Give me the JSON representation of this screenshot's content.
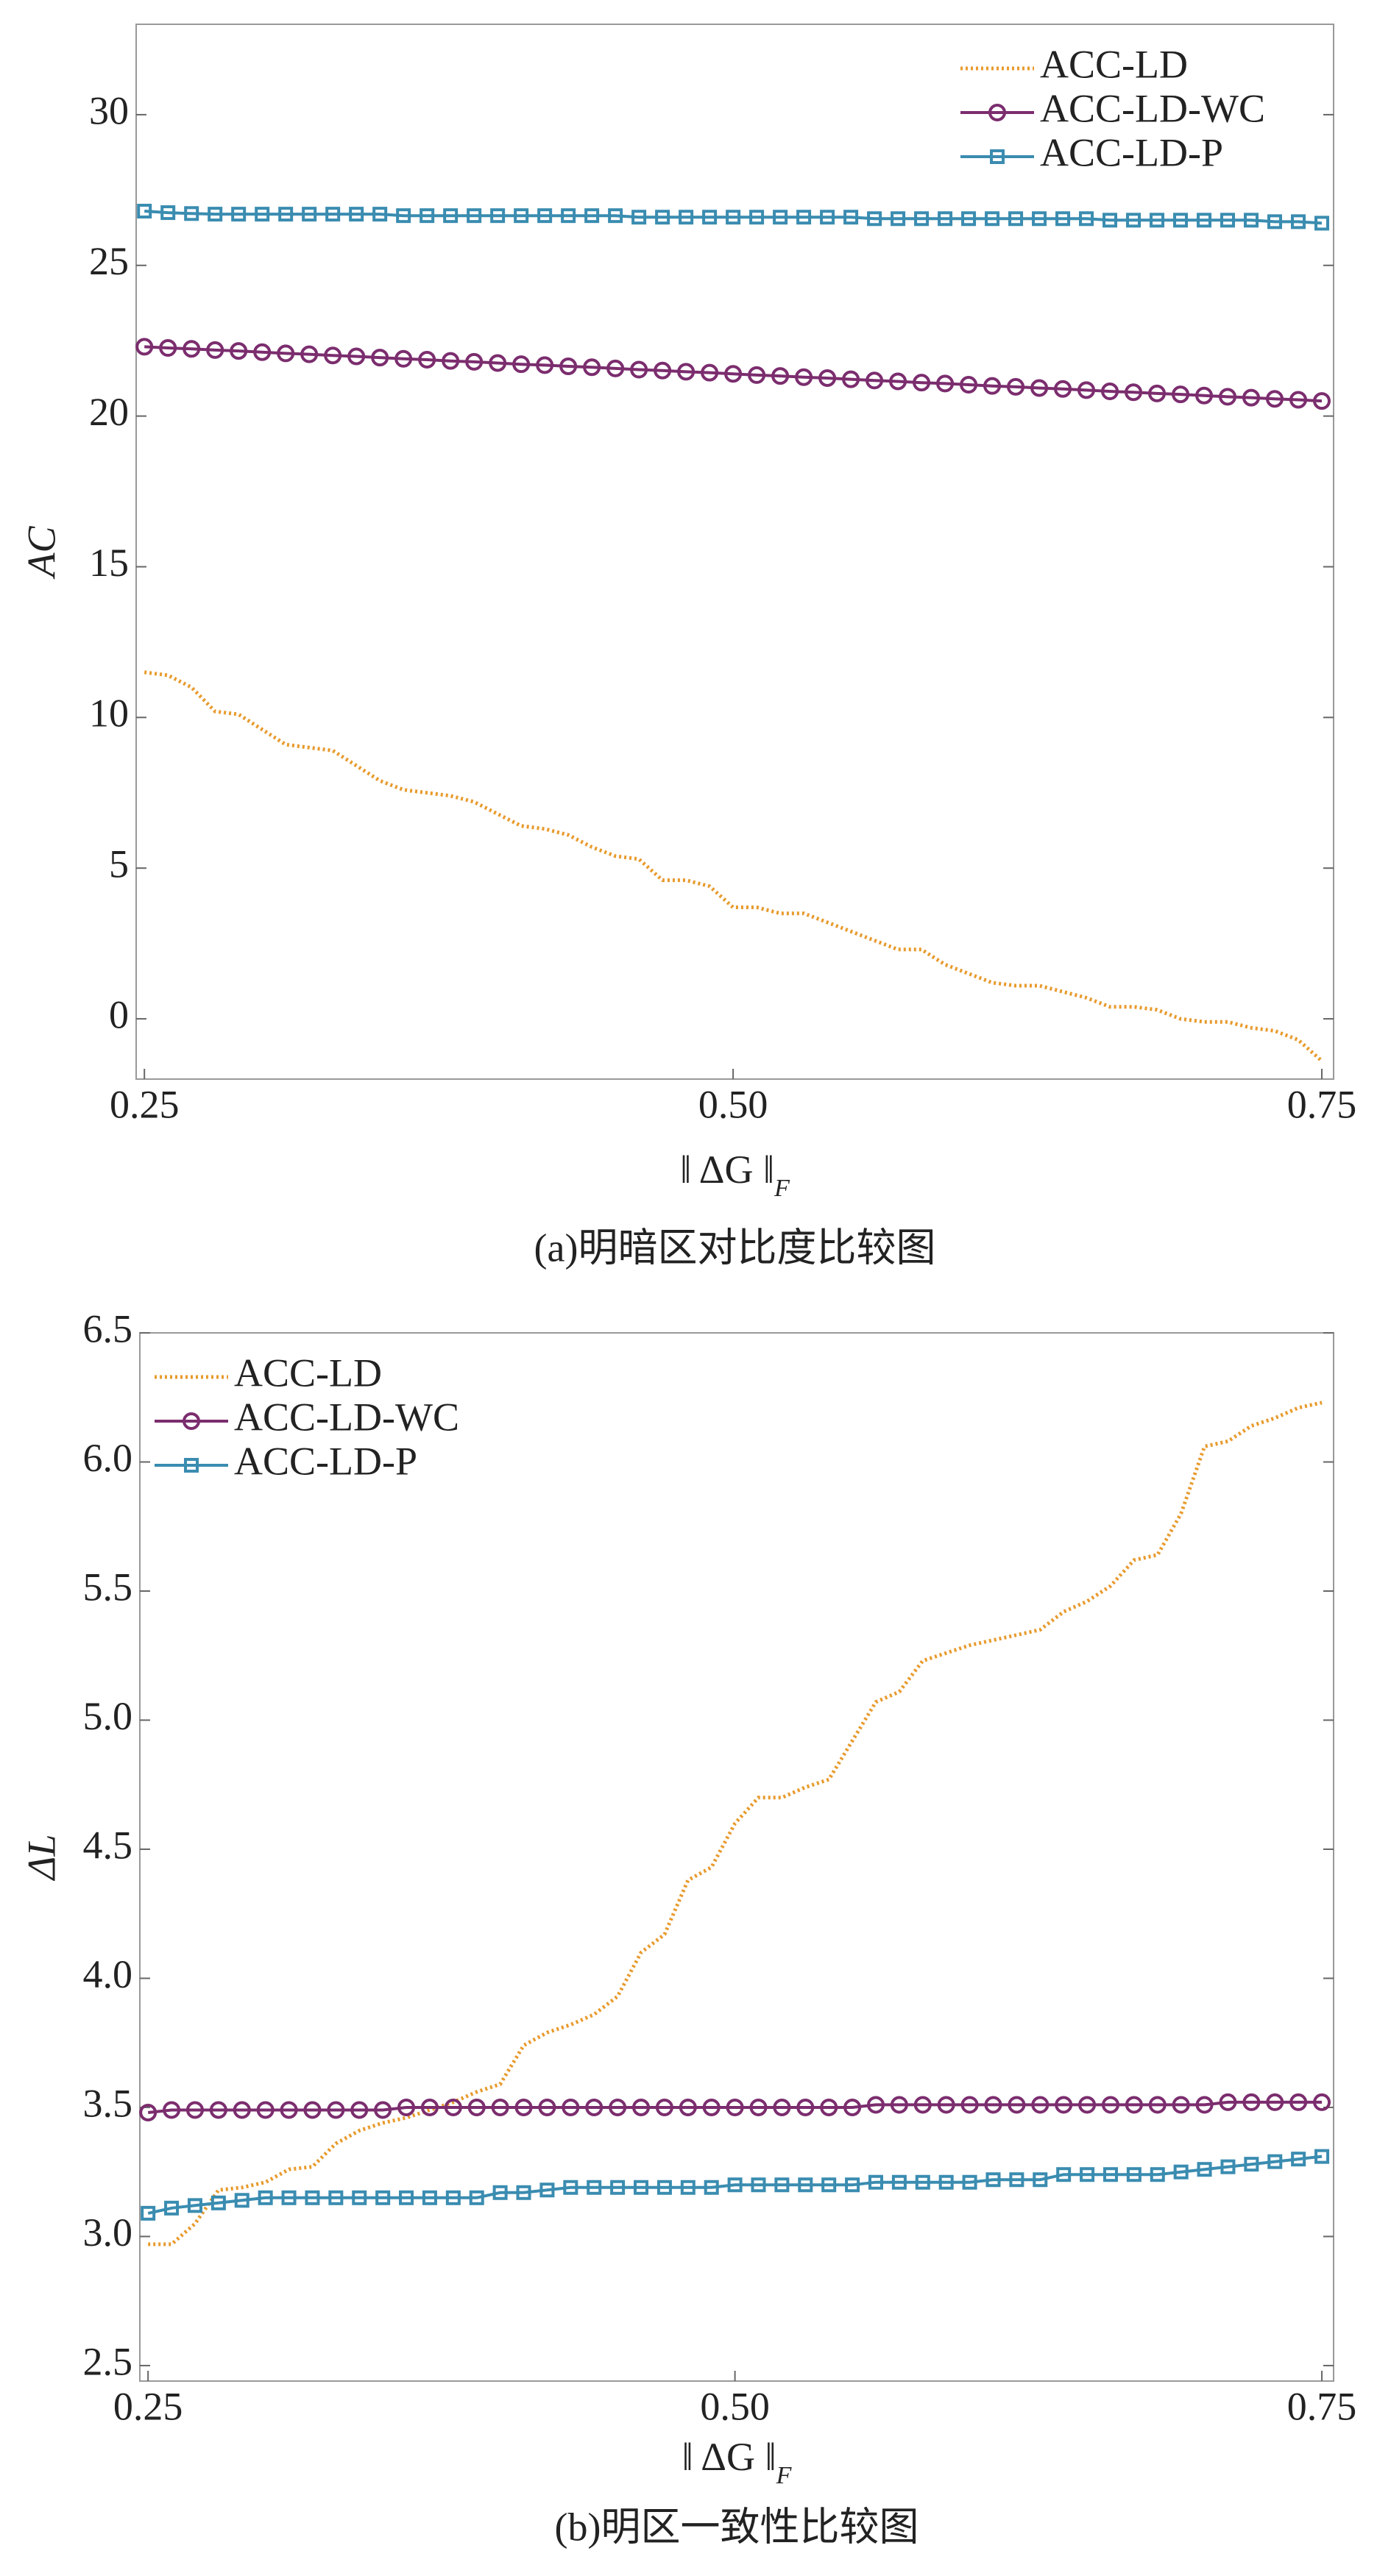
{
  "chart_data": [
    {
      "type": "line",
      "y_label": "AC",
      "x_label": {
        "text": "‖ ΔG ‖",
        "sub": "F"
      },
      "caption": "(a)明暗区对比度比较图",
      "legend": "upper right",
      "xlim": [
        0.2465,
        0.755
      ],
      "ylim": [
        -2,
        33
      ],
      "xticks": [
        0.25,
        {
          "value": 0.5,
          "label": "0.50"
        },
        0.75
      ],
      "yticks": [
        0,
        5,
        10,
        15,
        20,
        25,
        30
      ],
      "x": [
        0.25,
        0.26,
        0.27,
        0.28,
        0.29,
        0.3,
        0.31,
        0.32,
        0.33,
        0.34,
        0.35,
        0.36,
        0.37,
        0.38,
        0.39,
        0.4,
        0.41,
        0.42,
        0.43,
        0.44,
        0.45,
        0.46,
        0.47,
        0.48,
        0.49,
        0.5,
        0.51,
        0.52,
        0.53,
        0.54,
        0.55,
        0.56,
        0.57,
        0.58,
        0.59,
        0.6,
        0.61,
        0.62,
        0.63,
        0.64,
        0.65,
        0.66,
        0.67,
        0.68,
        0.69,
        0.7,
        0.71,
        0.72,
        0.73,
        0.74,
        0.75
      ],
      "series": [
        {
          "name": "ACC-LD",
          "color": "#e89a2c",
          "marker": "none",
          "values": [
            11.5,
            11.4,
            11.0,
            10.2,
            10.1,
            9.6,
            9.1,
            9.0,
            8.9,
            8.4,
            7.9,
            7.6,
            7.5,
            7.4,
            7.2,
            6.8,
            6.4,
            6.3,
            6.1,
            5.7,
            5.4,
            5.3,
            4.6,
            4.6,
            4.4,
            3.7,
            3.7,
            3.5,
            3.5,
            3.2,
            2.9,
            2.6,
            2.3,
            2.3,
            1.8,
            1.5,
            1.2,
            1.1,
            1.1,
            0.9,
            0.7,
            0.4,
            0.4,
            0.3,
            0.0,
            -0.1,
            -0.1,
            -0.3,
            -0.4,
            -0.7,
            -1.4
          ]
        },
        {
          "name": "ACC-LD-WC",
          "color": "#7b2d6e",
          "marker": "circle",
          "values": [
            22.3,
            22.26,
            22.23,
            22.19,
            22.16,
            22.12,
            22.08,
            22.05,
            22.01,
            21.98,
            21.94,
            21.9,
            21.87,
            21.83,
            21.8,
            21.76,
            21.72,
            21.69,
            21.65,
            21.62,
            21.58,
            21.54,
            21.51,
            21.47,
            21.44,
            21.4,
            21.36,
            21.33,
            21.29,
            21.26,
            21.22,
            21.18,
            21.15,
            21.11,
            21.08,
            21.04,
            21.0,
            20.97,
            20.93,
            20.9,
            20.86,
            20.82,
            20.79,
            20.75,
            20.72,
            20.68,
            20.64,
            20.61,
            20.57,
            20.54,
            20.5
          ]
        },
        {
          "name": "ACC-LD-P",
          "color": "#3a8cb0",
          "marker": "square",
          "values": [
            26.8,
            26.75,
            26.72,
            26.7,
            26.7,
            26.7,
            26.7,
            26.7,
            26.7,
            26.7,
            26.7,
            26.65,
            26.65,
            26.65,
            26.65,
            26.65,
            26.65,
            26.65,
            26.65,
            26.65,
            26.65,
            26.6,
            26.6,
            26.6,
            26.6,
            26.6,
            26.6,
            26.6,
            26.6,
            26.6,
            26.6,
            26.55,
            26.55,
            26.55,
            26.55,
            26.55,
            26.55,
            26.55,
            26.55,
            26.55,
            26.55,
            26.5,
            26.5,
            26.5,
            26.5,
            26.5,
            26.5,
            26.5,
            26.45,
            26.45,
            26.4
          ]
        }
      ]
    },
    {
      "type": "line",
      "y_label": "ΔL",
      "x_label": {
        "text": "‖ ΔG ‖",
        "sub": "F"
      },
      "caption": "(b)明区一致性比较图",
      "legend": "upper left",
      "xlim": [
        0.2465,
        0.755
      ],
      "ylim": [
        2.44,
        6.5
      ],
      "xticks": [
        0.25,
        {
          "value": 0.5,
          "label": "0.50"
        },
        0.75
      ],
      "yticks": [
        2.5,
        {
          "value": 3,
          "label": "3.0"
        },
        3.5,
        {
          "value": 4,
          "label": "4.0"
        },
        4.5,
        {
          "value": 5,
          "label": "5.0"
        },
        5.5,
        {
          "value": 6,
          "label": "6.0"
        },
        6.5
      ],
      "x": [
        0.25,
        0.26,
        0.27,
        0.28,
        0.29,
        0.3,
        0.31,
        0.32,
        0.33,
        0.34,
        0.35,
        0.36,
        0.37,
        0.38,
        0.39,
        0.4,
        0.41,
        0.42,
        0.43,
        0.44,
        0.45,
        0.46,
        0.47,
        0.48,
        0.49,
        0.5,
        0.51,
        0.52,
        0.53,
        0.54,
        0.55,
        0.56,
        0.57,
        0.58,
        0.59,
        0.6,
        0.61,
        0.62,
        0.63,
        0.64,
        0.65,
        0.66,
        0.67,
        0.68,
        0.69,
        0.7,
        0.71,
        0.72,
        0.73,
        0.74,
        0.75
      ],
      "series": [
        {
          "name": "ACC-LD",
          "color": "#e89a2c",
          "marker": "none",
          "values": [
            2.97,
            2.97,
            3.05,
            3.18,
            3.19,
            3.21,
            3.26,
            3.27,
            3.36,
            3.41,
            3.44,
            3.46,
            3.49,
            3.52,
            3.56,
            3.59,
            3.74,
            3.79,
            3.82,
            3.86,
            3.93,
            4.1,
            4.17,
            4.38,
            4.43,
            4.6,
            4.7,
            4.7,
            4.74,
            4.77,
            4.92,
            5.07,
            5.11,
            5.23,
            5.26,
            5.29,
            5.31,
            5.33,
            5.35,
            5.42,
            5.46,
            5.52,
            5.62,
            5.64,
            5.8,
            6.06,
            6.08,
            6.14,
            6.17,
            6.21,
            6.23
          ]
        },
        {
          "name": "ACC-LD-WC",
          "color": "#7b2d6e",
          "marker": "circle",
          "values": [
            3.48,
            3.49,
            3.49,
            3.49,
            3.49,
            3.49,
            3.49,
            3.49,
            3.49,
            3.49,
            3.49,
            3.5,
            3.5,
            3.5,
            3.5,
            3.5,
            3.5,
            3.5,
            3.5,
            3.5,
            3.5,
            3.5,
            3.5,
            3.5,
            3.5,
            3.5,
            3.5,
            3.5,
            3.5,
            3.5,
            3.5,
            3.51,
            3.51,
            3.51,
            3.51,
            3.51,
            3.51,
            3.51,
            3.51,
            3.51,
            3.51,
            3.51,
            3.51,
            3.51,
            3.51,
            3.51,
            3.52,
            3.52,
            3.52,
            3.52,
            3.52
          ]
        },
        {
          "name": "ACC-LD-P",
          "color": "#3a8cb0",
          "marker": "square",
          "values": [
            3.09,
            3.11,
            3.12,
            3.13,
            3.14,
            3.15,
            3.15,
            3.15,
            3.15,
            3.15,
            3.15,
            3.15,
            3.15,
            3.15,
            3.15,
            3.17,
            3.17,
            3.18,
            3.19,
            3.19,
            3.19,
            3.19,
            3.19,
            3.19,
            3.19,
            3.2,
            3.2,
            3.2,
            3.2,
            3.2,
            3.2,
            3.21,
            3.21,
            3.21,
            3.21,
            3.21,
            3.22,
            3.22,
            3.22,
            3.24,
            3.24,
            3.24,
            3.24,
            3.24,
            3.25,
            3.26,
            3.27,
            3.28,
            3.29,
            3.3,
            3.31
          ]
        }
      ]
    }
  ]
}
